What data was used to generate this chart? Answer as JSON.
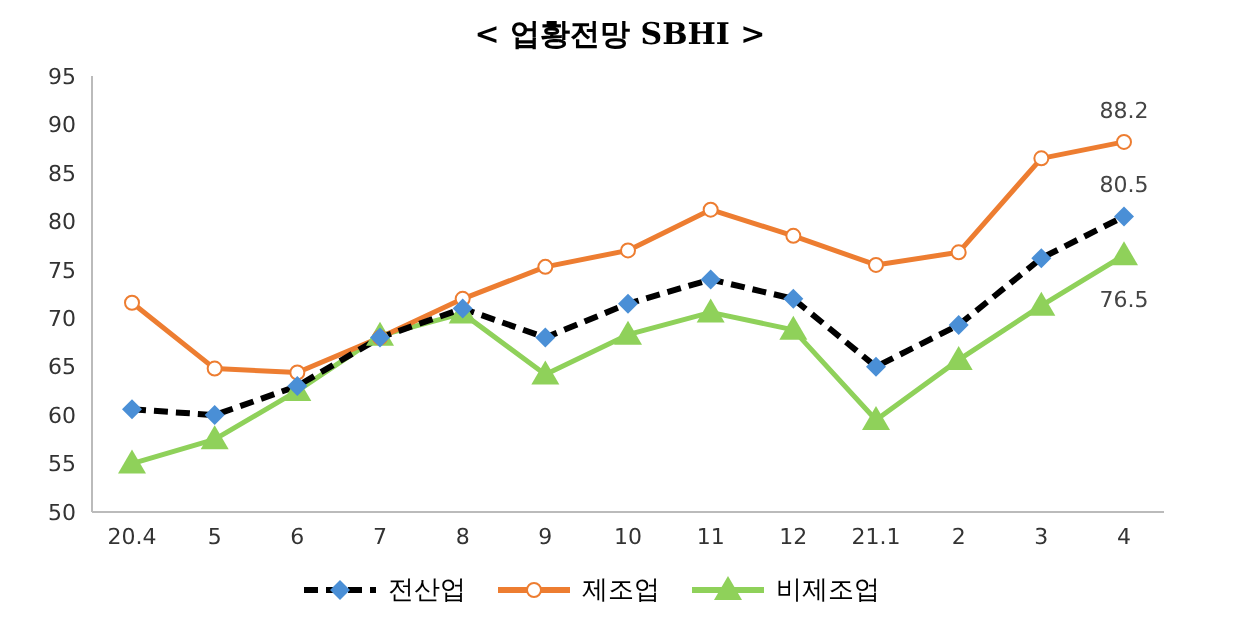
{
  "chart_data": {
    "type": "line",
    "title": "< 업황전망 SBHI >",
    "categories": [
      "20.4",
      "5",
      "6",
      "7",
      "8",
      "9",
      "10",
      "11",
      "12",
      "21.1",
      "2",
      "3",
      "4"
    ],
    "series": [
      {
        "name": "전산업",
        "color": "#000000",
        "marker": "diamond",
        "line_style": "dashed",
        "values": [
          60.6,
          60,
          63,
          68,
          71,
          68,
          71.5,
          74,
          72,
          65,
          69.3,
          76.2,
          80.5
        ],
        "value_labels": [
          null,
          null,
          null,
          null,
          null,
          null,
          null,
          null,
          null,
          null,
          null,
          null,
          "80.5"
        ]
      },
      {
        "name": "제조업",
        "color": "#ed7d31",
        "marker": "circle",
        "line_style": "solid",
        "values": [
          71.6,
          64.8,
          64.4,
          68,
          72,
          75.3,
          77,
          81.2,
          78.5,
          75.5,
          76.8,
          86.5,
          88.2
        ],
        "value_labels": [
          null,
          null,
          null,
          null,
          null,
          null,
          null,
          null,
          null,
          null,
          null,
          null,
          "88.2"
        ]
      },
      {
        "name": "비제조업",
        "color": "#8fd15a",
        "marker": "triangle",
        "line_style": "solid",
        "values": [
          55,
          57.5,
          62.5,
          68.2,
          70.5,
          64.2,
          68.3,
          70.6,
          68.8,
          59.5,
          65.7,
          71.3,
          76.5
        ],
        "value_labels": [
          null,
          null,
          null,
          null,
          null,
          null,
          null,
          null,
          null,
          null,
          null,
          null,
          "76.5"
        ]
      }
    ],
    "ylim": [
      50,
      95
    ],
    "yticks": [
      50,
      55,
      60,
      65,
      70,
      75,
      80,
      85,
      90,
      95
    ],
    "grid": false,
    "legend": "bottom"
  }
}
